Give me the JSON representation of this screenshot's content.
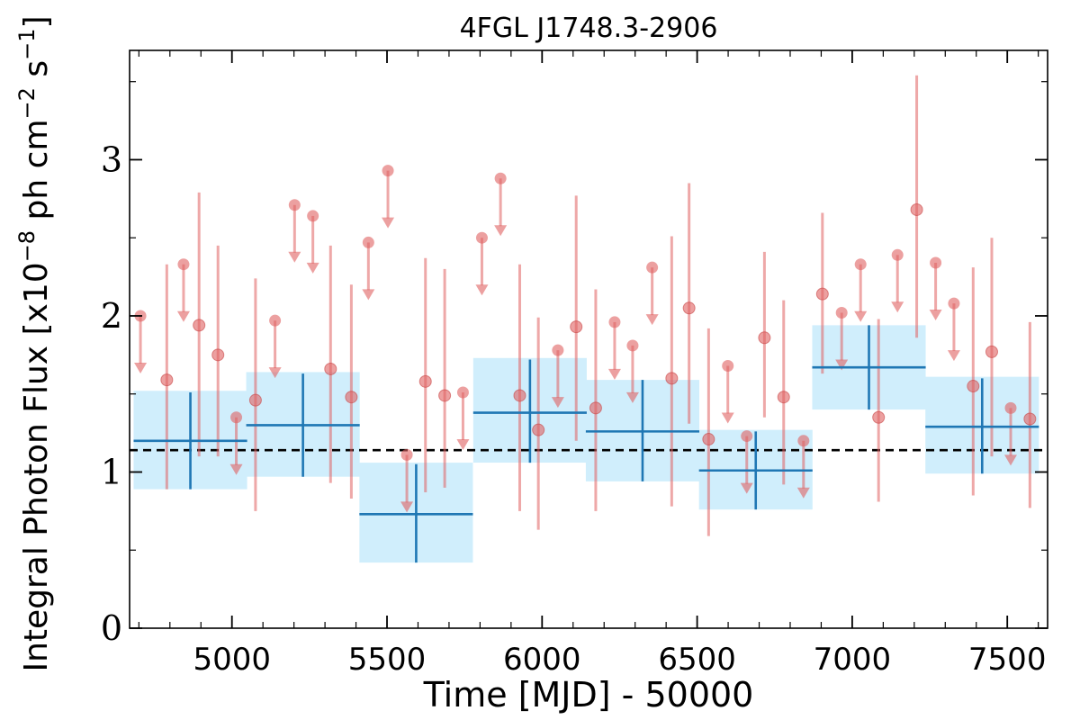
{
  "chart_data": {
    "type": "scatter",
    "title": "4FGL J1748.3-2906",
    "xlabel": "Time [MJD] - 50000",
    "ylabel_main": "Integral Photon Flux [x10",
    "ylabel_exp1": "−8",
    "ylabel_mid": " ph cm",
    "ylabel_exp2": "−2",
    "ylabel_mid2": " s",
    "ylabel_exp3": "−1",
    "ylabel_end": "]",
    "xlim": [
      4670,
      7630
    ],
    "ylim": [
      0,
      3.7
    ],
    "x_ticks": [
      5000,
      5500,
      6000,
      6500,
      7000,
      7500
    ],
    "x_tick_labels": [
      "5000",
      "5500",
      "6000",
      "6500",
      "7000",
      "7500"
    ],
    "y_ticks": [
      0,
      1,
      2,
      3
    ],
    "y_tick_labels": [
      "0",
      "1",
      "2",
      "3"
    ],
    "mean_flux": 1.14,
    "colors": {
      "points": "#e06060",
      "bins": "#1f77b4",
      "band": "#d0eefc",
      "mean_line": "#000000"
    },
    "binned": [
      {
        "x": 4866,
        "xerr": 183,
        "y": 1.2,
        "ylo": 0.89,
        "yhi": 1.51,
        "band": [
          0.89,
          1.52
        ]
      },
      {
        "x": 5229,
        "xerr": 183,
        "y": 1.3,
        "ylo": 0.97,
        "yhi": 1.63,
        "band": [
          0.97,
          1.64
        ]
      },
      {
        "x": 5594,
        "xerr": 183,
        "y": 0.73,
        "ylo": 0.42,
        "yhi": 1.05,
        "band": [
          0.42,
          1.06
        ]
      },
      {
        "x": 5961,
        "xerr": 183,
        "y": 1.38,
        "ylo": 1.06,
        "yhi": 1.72,
        "band": [
          1.06,
          1.73
        ]
      },
      {
        "x": 6324,
        "xerr": 183,
        "y": 1.26,
        "ylo": 0.94,
        "yhi": 1.59,
        "band": [
          0.94,
          1.59
        ]
      },
      {
        "x": 6689,
        "xerr": 183,
        "y": 1.01,
        "ylo": 0.76,
        "yhi": 1.26,
        "band": [
          0.76,
          1.27
        ]
      },
      {
        "x": 7054,
        "xerr": 183,
        "y": 1.67,
        "ylo": 1.4,
        "yhi": 1.94,
        "band": [
          1.4,
          1.94
        ]
      },
      {
        "x": 7419,
        "xerr": 183,
        "y": 1.29,
        "ylo": 0.99,
        "yhi": 1.6,
        "band": [
          0.99,
          1.61
        ]
      }
    ],
    "detections": [
      {
        "x": 4790,
        "y": 1.59,
        "ylo": 0.89,
        "yhi": 2.33
      },
      {
        "x": 4894,
        "y": 1.94,
        "ylo": 1.1,
        "yhi": 2.79
      },
      {
        "x": 4955,
        "y": 1.75,
        "ylo": 1.1,
        "yhi": 2.45
      },
      {
        "x": 5076,
        "y": 1.46,
        "ylo": 0.75,
        "yhi": 2.24
      },
      {
        "x": 5318,
        "y": 1.66,
        "ylo": 0.93,
        "yhi": 2.45
      },
      {
        "x": 5385,
        "y": 1.48,
        "ylo": 0.83,
        "yhi": 2.2
      },
      {
        "x": 5624,
        "y": 1.58,
        "ylo": 0.87,
        "yhi": 2.37
      },
      {
        "x": 5686,
        "y": 1.49,
        "ylo": 0.9,
        "yhi": 2.3
      },
      {
        "x": 5928,
        "y": 1.49,
        "ylo": 0.75,
        "yhi": 2.33
      },
      {
        "x": 5988,
        "y": 1.27,
        "ylo": 0.63,
        "yhi": 1.99
      },
      {
        "x": 6110,
        "y": 1.93,
        "ylo": 1.2,
        "yhi": 2.77
      },
      {
        "x": 6173,
        "y": 1.41,
        "ylo": 0.75,
        "yhi": 2.17
      },
      {
        "x": 6418,
        "y": 1.6,
        "ylo": 0.78,
        "yhi": 2.51
      },
      {
        "x": 6474,
        "y": 2.05,
        "ylo": 1.31,
        "yhi": 2.85
      },
      {
        "x": 6537,
        "y": 1.21,
        "ylo": 0.59,
        "yhi": 1.92
      },
      {
        "x": 6717,
        "y": 1.86,
        "ylo": 1.35,
        "yhi": 2.41
      },
      {
        "x": 6779,
        "y": 1.48,
        "ylo": 0.92,
        "yhi": 2.1
      },
      {
        "x": 6904,
        "y": 2.14,
        "ylo": 1.63,
        "yhi": 2.66
      },
      {
        "x": 7085,
        "y": 1.35,
        "ylo": 0.81,
        "yhi": 1.98
      },
      {
        "x": 7208,
        "y": 2.68,
        "ylo": 1.86,
        "yhi": 3.54
      },
      {
        "x": 7390,
        "y": 1.55,
        "ylo": 0.85,
        "yhi": 2.31
      },
      {
        "x": 7450,
        "y": 1.77,
        "ylo": 1.1,
        "yhi": 2.5
      },
      {
        "x": 7573,
        "y": 1.34,
        "ylo": 0.77,
        "yhi": 1.96
      }
    ],
    "upper_limits": [
      {
        "x": 4705,
        "y": 2.0,
        "arrow_to": 1.66
      },
      {
        "x": 4844,
        "y": 2.33,
        "arrow_to": 1.99
      },
      {
        "x": 5014,
        "y": 1.35,
        "arrow_to": 1.01
      },
      {
        "x": 5139,
        "y": 1.97,
        "arrow_to": 1.63
      },
      {
        "x": 5202,
        "y": 2.71,
        "arrow_to": 2.37
      },
      {
        "x": 5261,
        "y": 2.64,
        "arrow_to": 2.3
      },
      {
        "x": 5440,
        "y": 2.47,
        "arrow_to": 2.13
      },
      {
        "x": 5503,
        "y": 2.93,
        "arrow_to": 2.59
      },
      {
        "x": 5564,
        "y": 1.11,
        "arrow_to": 0.77
      },
      {
        "x": 5745,
        "y": 1.51,
        "arrow_to": 1.17
      },
      {
        "x": 5806,
        "y": 2.5,
        "arrow_to": 2.16
      },
      {
        "x": 5866,
        "y": 2.88,
        "arrow_to": 2.54
      },
      {
        "x": 6051,
        "y": 1.78,
        "arrow_to": 1.44
      },
      {
        "x": 6234,
        "y": 1.96,
        "arrow_to": 1.62
      },
      {
        "x": 6292,
        "y": 1.81,
        "arrow_to": 1.47
      },
      {
        "x": 6355,
        "y": 2.31,
        "arrow_to": 1.97
      },
      {
        "x": 6599,
        "y": 1.68,
        "arrow_to": 1.34
      },
      {
        "x": 6660,
        "y": 1.23,
        "arrow_to": 0.89
      },
      {
        "x": 6843,
        "y": 1.2,
        "arrow_to": 0.86
      },
      {
        "x": 6966,
        "y": 2.02,
        "arrow_to": 1.68
      },
      {
        "x": 7027,
        "y": 2.33,
        "arrow_to": 1.99
      },
      {
        "x": 7146,
        "y": 2.39,
        "arrow_to": 2.05
      },
      {
        "x": 7269,
        "y": 2.34,
        "arrow_to": 2.0
      },
      {
        "x": 7328,
        "y": 2.08,
        "arrow_to": 1.74
      },
      {
        "x": 7511,
        "y": 1.41,
        "arrow_to": 1.07
      }
    ]
  }
}
